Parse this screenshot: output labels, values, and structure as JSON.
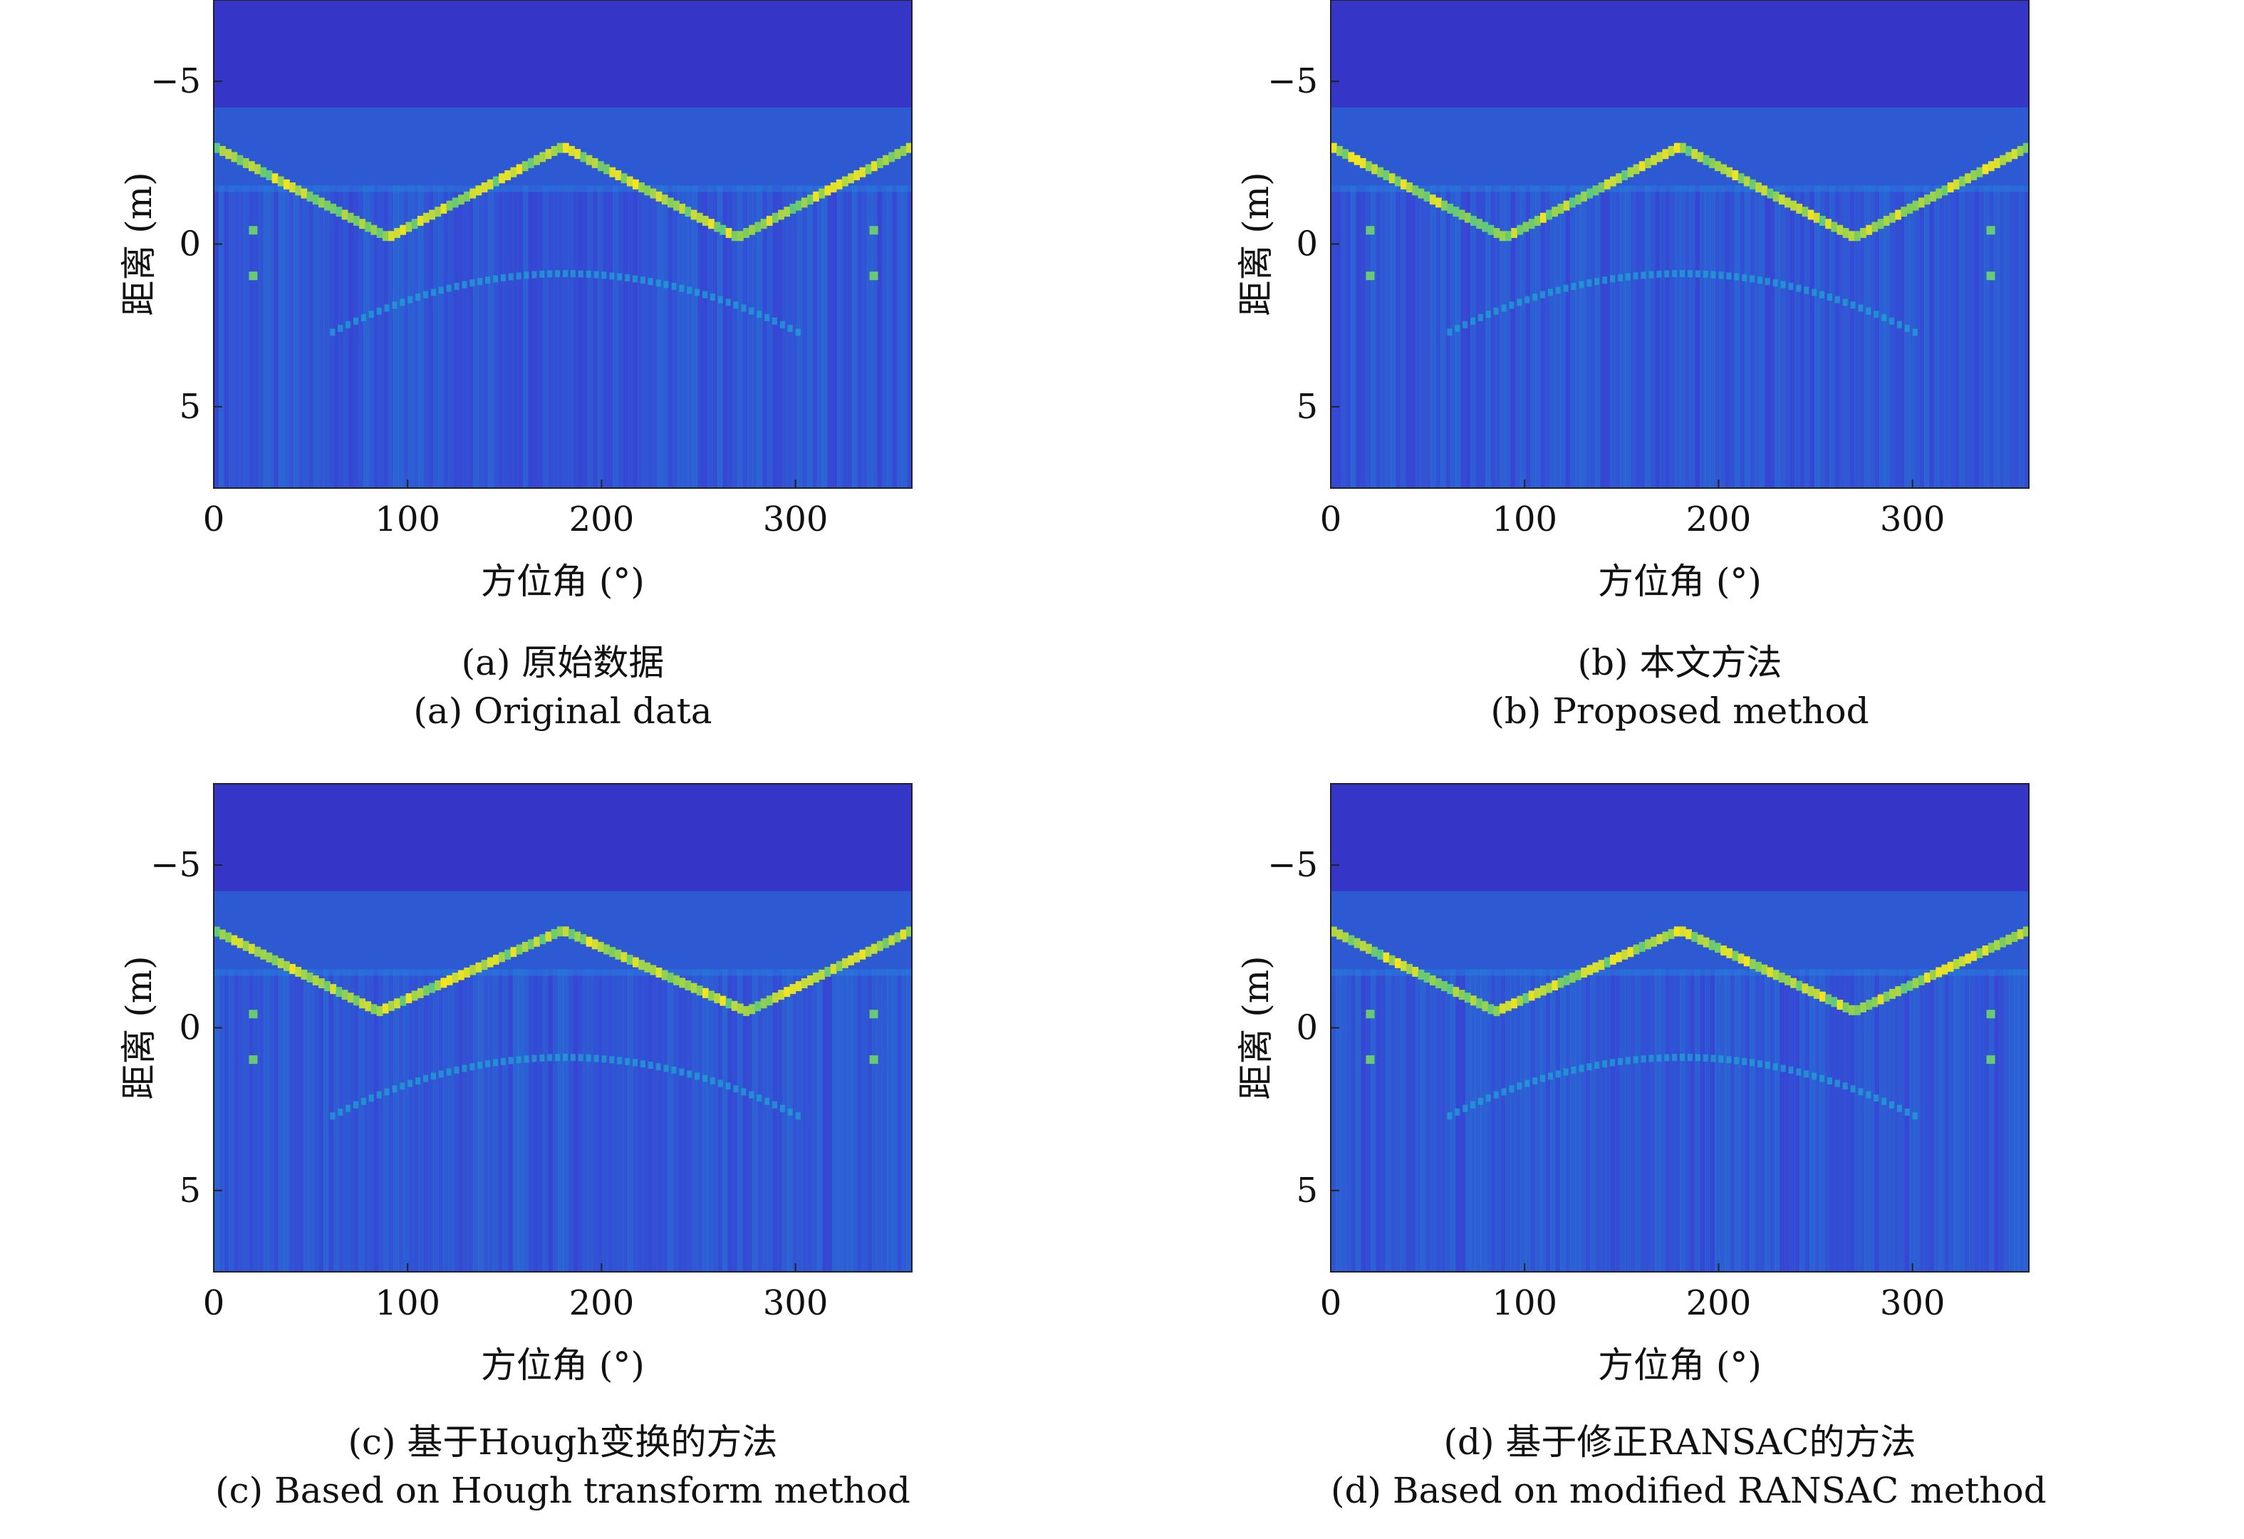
{
  "chart_data": [
    {
      "type": "heatmap",
      "caption_cn": "(a) 原始数据",
      "caption_en": "(a) Original data",
      "xlabel": "方位角 (°)",
      "ylabel": "距离 (m)",
      "xlim": [
        0,
        360
      ],
      "ylim": [
        -7.5,
        7.5
      ],
      "y_axis_reversed": true,
      "xticks": [
        0,
        100,
        200,
        300
      ],
      "yticks": [
        -5,
        0,
        5
      ],
      "xtick_labels": [
        "0",
        "100",
        "200",
        "300"
      ],
      "ytick_labels": [
        "−5",
        "0",
        "5"
      ],
      "colormap": "parula",
      "main_curve": {
        "x": [
          0,
          90,
          180,
          270,
          360
        ],
        "y": [
          -3.0,
          -0.2,
          -3.0,
          -0.2,
          -3.0
        ]
      }
    },
    {
      "type": "heatmap",
      "caption_cn": "(b) 本文方法",
      "caption_en": "(b) Proposed method",
      "xlabel": "方位角 (°)",
      "ylabel": "距离 (m)",
      "xlim": [
        0,
        360
      ],
      "ylim": [
        -7.5,
        7.5
      ],
      "y_axis_reversed": true,
      "xticks": [
        0,
        100,
        200,
        300
      ],
      "yticks": [
        -5,
        0,
        5
      ],
      "xtick_labels": [
        "0",
        "100",
        "200",
        "300"
      ],
      "ytick_labels": [
        "−5",
        "0",
        "5"
      ],
      "colormap": "parula",
      "main_curve": {
        "x": [
          0,
          90,
          180,
          270,
          360
        ],
        "y": [
          -3.0,
          -0.2,
          -3.0,
          -0.2,
          -3.0
        ]
      }
    },
    {
      "type": "heatmap",
      "caption_cn": "(c) 基于Hough变换的方法",
      "caption_en": "(c) Based on Hough transform method",
      "xlabel": "方位角 (°)",
      "ylabel": "距离 (m)",
      "xlim": [
        0,
        360
      ],
      "ylim": [
        -7.5,
        7.5
      ],
      "y_axis_reversed": true,
      "xticks": [
        0,
        100,
        200,
        300
      ],
      "yticks": [
        -5,
        0,
        5
      ],
      "xtick_labels": [
        "0",
        "100",
        "200",
        "300"
      ],
      "ytick_labels": [
        "−5",
        "0",
        "5"
      ],
      "colormap": "parula",
      "main_curve": {
        "x": [
          0,
          85,
          180,
          275,
          360
        ],
        "y": [
          -3.0,
          -0.5,
          -3.0,
          -0.5,
          -3.0
        ]
      }
    },
    {
      "type": "heatmap",
      "caption_cn": "(d) 基于修正RANSAC的方法",
      "caption_en": "(d) Based on modified RANSAC method",
      "xlabel": "方位角 (°)",
      "ylabel": "距离 (m)",
      "xlim": [
        0,
        360
      ],
      "ylim": [
        -7.5,
        7.5
      ],
      "y_axis_reversed": true,
      "xticks": [
        0,
        100,
        200,
        300
      ],
      "yticks": [
        -5,
        0,
        5
      ],
      "xtick_labels": [
        "0",
        "100",
        "200",
        "300"
      ],
      "ytick_labels": [
        "−5",
        "0",
        "5"
      ],
      "colormap": "parula",
      "main_curve": {
        "x": [
          0,
          85,
          180,
          270,
          360
        ],
        "y": [
          -3.0,
          -0.5,
          -3.0,
          -0.5,
          -3.0
        ]
      }
    }
  ],
  "colors": {
    "background": "#3536c7",
    "low": "#3d3fdc",
    "mid": "#1e96e0",
    "cyan": "#22c1c0",
    "green": "#7fcd5a",
    "yellow": "#f6e51f"
  }
}
